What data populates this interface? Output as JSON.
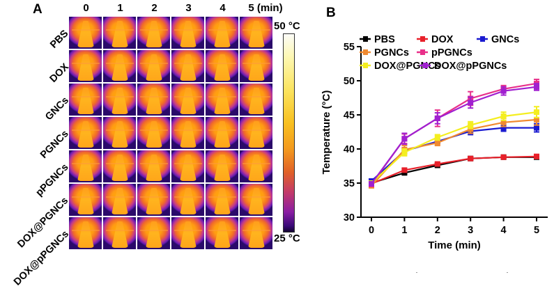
{
  "panel_a": {
    "label": "A",
    "column_labels": [
      "0",
      "1",
      "2",
      "3",
      "4",
      "5 (min)"
    ],
    "row_labels": [
      "PBS",
      "DOX",
      "GNCs",
      "PGNCs",
      "pPGNCs",
      "DOX@PGNCs",
      "DOX@pPGNCs"
    ],
    "colorbar": {
      "max_label": "50 °C",
      "min_label": "25 °C"
    },
    "image_description": "infrared thermal images of mice, inferno colormap"
  },
  "panel_b": {
    "label": "B"
  },
  "chart_data": {
    "type": "line",
    "title": "",
    "xlabel": "Time (min)",
    "ylabel": "Temperature (°C)",
    "x": [
      0,
      1,
      2,
      3,
      4,
      5
    ],
    "xticks": [
      "0",
      "1",
      "2",
      "3",
      "4",
      "5"
    ],
    "yticks": [
      "30",
      "35",
      "40",
      "45",
      "50",
      "55"
    ],
    "xlim": [
      -0.3,
      5.3
    ],
    "ylim": [
      30,
      55
    ],
    "grid": false,
    "legend_position": "top",
    "series": [
      {
        "name": "PBS",
        "color": "#000000",
        "values": [
          35.0,
          36.5,
          37.6,
          38.6,
          38.8,
          38.8
        ],
        "err": [
          0.2,
          0.2,
          0.2,
          0.2,
          0.2,
          0.2
        ]
      },
      {
        "name": "DOX",
        "color": "#e8202a",
        "values": [
          34.9,
          36.9,
          37.8,
          38.6,
          38.8,
          38.9
        ],
        "err": [
          0.2,
          0.2,
          0.2,
          0.2,
          0.2,
          0.3
        ]
      },
      {
        "name": "GNCs",
        "color": "#1a1ad0",
        "values": [
          35.3,
          39.7,
          41.1,
          42.6,
          43.1,
          43.1
        ],
        "err": [
          0.2,
          0.4,
          0.3,
          0.5,
          0.5,
          0.6
        ]
      },
      {
        "name": "PGNCs",
        "color": "#f08a30",
        "values": [
          34.6,
          39.9,
          40.9,
          42.9,
          43.9,
          44.3
        ],
        "err": [
          0.2,
          0.6,
          0.4,
          0.6,
          0.6,
          0.8
        ]
      },
      {
        "name": "pPGNCs",
        "color": "#e8308a",
        "values": [
          34.8,
          41.5,
          44.5,
          47.4,
          48.8,
          49.6
        ],
        "err": [
          0.2,
          0.7,
          1.2,
          1.0,
          0.5,
          0.6
        ]
      },
      {
        "name": "DOX@PGNCs",
        "color": "#f4ee20",
        "values": [
          35.0,
          39.5,
          41.7,
          43.5,
          44.8,
          45.4
        ],
        "err": [
          0.2,
          0.5,
          0.4,
          0.5,
          0.6,
          0.8
        ]
      },
      {
        "name": "DOX@pPGNCs",
        "color": "#a020d0",
        "values": [
          34.9,
          41.5,
          44.5,
          46.8,
          48.5,
          49.1
        ],
        "err": [
          0.2,
          0.8,
          0.8,
          0.8,
          0.6,
          0.5
        ]
      }
    ]
  }
}
